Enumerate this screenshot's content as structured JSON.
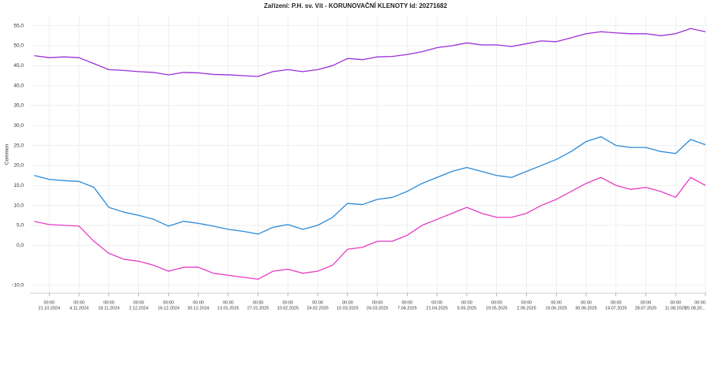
{
  "chart_data": {
    "type": "line",
    "title": "Zařízení: P.H. sv. Vít - KORUNOVAČNÍ KLENOTY Id: 20271682",
    "y_label": "Common",
    "grid": true,
    "x": [
      "14.10.2024",
      "21.10.2024",
      "28.10.2024",
      "4.11.2024",
      "11.11.2024",
      "18.11.2024",
      "25.11.2024",
      "2.12.2024",
      "9.12.2024",
      "16.12.2024",
      "23.12.2024",
      "30.12.2024",
      "6.01.2025",
      "13.01.2025",
      "20.01.2025",
      "27.01.2025",
      "3.02.2025",
      "10.02.2025",
      "17.02.2025",
      "24.02.2025",
      "3.03.2025",
      "10.03.2025",
      "17.03.2025",
      "24.03.2025",
      "31.03.2025",
      "7.04.2025",
      "14.04.2025",
      "21.04.2025",
      "28.04.2025",
      "5.05.2025",
      "12.05.2025",
      "19.05.2025",
      "26.05.2025",
      "2.06.2025",
      "9.06.2025",
      "16.06.2025",
      "23.06.2025",
      "30.06.2025",
      "7.07.2025",
      "14.07.2025",
      "21.07.2025",
      "28.07.2025",
      "4.08.2025",
      "11.08.2025",
      "18.08.2025",
      "25.08.2025"
    ],
    "series": [
      {
        "color": "#9b30d9",
        "values": [
          47.5,
          47,
          47.2,
          47,
          45.5,
          44,
          43.8,
          43.5,
          43.3,
          42.7,
          43.3,
          43.2,
          42.8,
          42.7,
          42.5,
          42.3,
          43.5,
          44,
          43.5,
          44,
          45,
          46.8,
          46.5,
          47.2,
          47.3,
          47.8,
          48.5,
          49.5,
          50,
          50.7,
          50.2,
          50.2,
          49.8,
          50.5,
          51.2,
          51,
          52,
          53,
          53.5,
          53.2,
          53,
          53,
          52.5,
          53,
          54.3,
          53.5
        ]
      },
      {
        "color": "#2b8ad8",
        "values": [
          17.5,
          16.5,
          16.2,
          16,
          14.5,
          9.5,
          8.3,
          7.5,
          6.5,
          4.8,
          6,
          5.5,
          4.8,
          4,
          3.5,
          2.8,
          4.5,
          5.2,
          4,
          5,
          7,
          10.5,
          10.2,
          11.5,
          12,
          13.5,
          15.5,
          17,
          18.5,
          19.5,
          18.5,
          17.5,
          17,
          18.5,
          20,
          21.5,
          23.5,
          26,
          27.2,
          25,
          24.5,
          24.5,
          23.5,
          23,
          26.5,
          25.2
        ]
      },
      {
        "color": "#e63cc4",
        "values": [
          6,
          5.2,
          5,
          4.8,
          1,
          -2,
          -3.5,
          -4,
          -5,
          -6.5,
          -5.5,
          -5.5,
          -7,
          -7.5,
          -8,
          -8.5,
          -6.5,
          -6,
          -7,
          -6.5,
          -5,
          -1,
          -0.5,
          1,
          1,
          2.5,
          5,
          6.5,
          8,
          9.5,
          8,
          7,
          7,
          8,
          10,
          11.5,
          13.5,
          15.5,
          17,
          15,
          14,
          14.5,
          13.5,
          12,
          17,
          15
        ]
      }
    ],
    "xlim": [
      "12.10.2024",
      "25.08.2025"
    ],
    "xticks": [
      {
        "value": "21.10.2024",
        "label": [
          "00:00",
          "21.10.2024"
        ]
      },
      {
        "value": "4.11.2024",
        "label": [
          "00:00",
          "4.11.2024"
        ]
      },
      {
        "value": "18.11.2024",
        "label": [
          "00:00",
          "18.11.2024"
        ]
      },
      {
        "value": "2.12.2024",
        "label": [
          "00:00",
          "2.12.2024"
        ]
      },
      {
        "value": "16.12.2024",
        "label": [
          "00:00",
          "16.12.2024"
        ]
      },
      {
        "value": "30.12.2024",
        "label": [
          "00:00",
          "30.12.2024"
        ]
      },
      {
        "value": "13.01.2025",
        "label": [
          "00:00",
          "13.01.2025"
        ]
      },
      {
        "value": "27.01.2025",
        "label": [
          "00:00",
          "27.01.2025"
        ]
      },
      {
        "value": "10.02.2025",
        "label": [
          "00:00",
          "10.02.2025"
        ]
      },
      {
        "value": "24.02.2025",
        "label": [
          "00:00",
          "24.02.2025"
        ]
      },
      {
        "value": "10.03.2025",
        "label": [
          "00:00",
          "10.03.2025"
        ]
      },
      {
        "value": "24.03.2025",
        "label": [
          "00:00",
          "24.03.2025"
        ]
      },
      {
        "value": "7.04.2025",
        "label": [
          "00:00",
          "7.04.2025"
        ]
      },
      {
        "value": "21.04.2025",
        "label": [
          "00:00",
          "21.04.2025"
        ]
      },
      {
        "value": "5.05.2025",
        "label": [
          "00:00",
          "5.05.2025"
        ]
      },
      {
        "value": "19.05.2025",
        "label": [
          "00:00",
          "19.05.2025"
        ]
      },
      {
        "value": "2.06.2025",
        "label": [
          "00:00",
          "2.06.2025"
        ]
      },
      {
        "value": "16.06.2025",
        "label": [
          "00:00",
          "16.06.2025"
        ]
      },
      {
        "value": "30.06.2025",
        "label": [
          "00:00",
          "30.06.2025"
        ]
      },
      {
        "value": "14.07.2025",
        "label": [
          "00:00",
          "14.07.2025"
        ]
      },
      {
        "value": "28.07.2025",
        "label": [
          "00:00",
          "28.07.2025"
        ]
      },
      {
        "value": "11.08.2025",
        "label": [
          "00:00",
          "11.08.2025"
        ]
      },
      {
        "value": "25.08.2025",
        "label": [
          "00:00",
          "25.08.20..."
        ]
      }
    ],
    "ylim": [
      -12,
      57.5
    ],
    "yticks": [
      {
        "value": 55,
        "label": "55,0"
      },
      {
        "value": 50,
        "label": "50,0"
      },
      {
        "value": 45,
        "label": "45,0"
      },
      {
        "value": 40,
        "label": "40,0"
      },
      {
        "value": 35,
        "label": "35,0"
      },
      {
        "value": 30,
        "label": "30,0"
      },
      {
        "value": 25,
        "label": "25,0"
      },
      {
        "value": 20,
        "label": "20,0"
      },
      {
        "value": 15,
        "label": "15,0"
      },
      {
        "value": 10,
        "label": "10,0"
      },
      {
        "value": 5,
        "label": "5,0"
      },
      {
        "value": 0,
        "label": "0,0"
      },
      {
        "value": -10,
        "label": "-10,0"
      }
    ]
  }
}
